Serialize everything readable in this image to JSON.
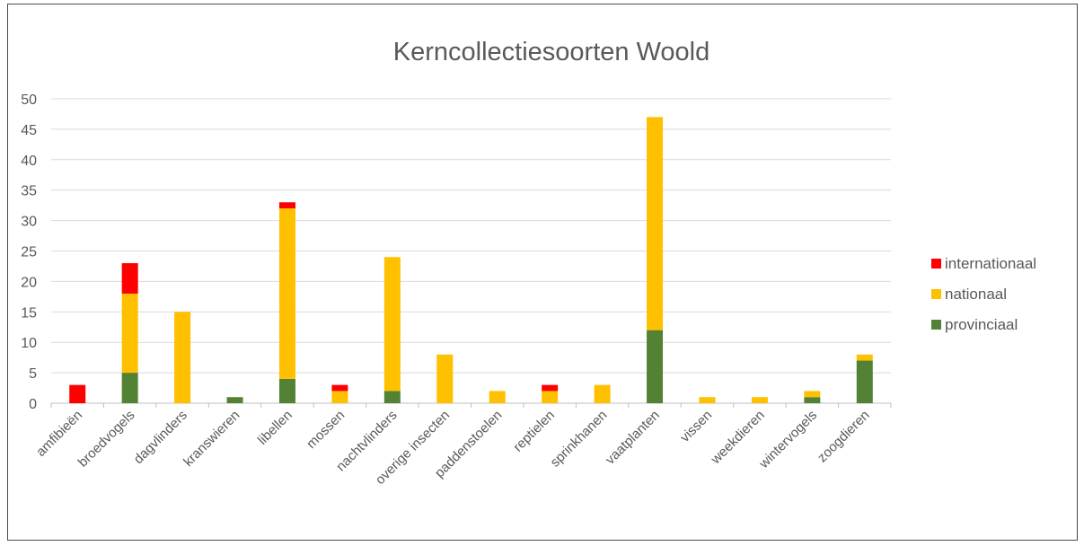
{
  "chart_data": {
    "type": "bar",
    "stacked": true,
    "title": "Kerncollectiesoorten Woold",
    "xlabel": "",
    "ylabel": "",
    "ylim": [
      0,
      50
    ],
    "yticks": [
      "0",
      "5",
      "10",
      "15",
      "20",
      "25",
      "30",
      "35",
      "40",
      "45",
      "50"
    ],
    "grid": true,
    "legend_position": "right",
    "categories": [
      "amfibieën",
      "broedvogels",
      "dagvlinders",
      "kranswieren",
      "libellen",
      "mossen",
      "nachtvlinders",
      "overige insecten",
      "paddenstoelen",
      "reptielen",
      "sprinkhanen",
      "vaatplanten",
      "vissen",
      "weekdieren",
      "wintervogels",
      "zoogdieren"
    ],
    "series": [
      {
        "name": "provinciaal",
        "color": "#548235",
        "values": [
          0,
          5,
          0,
          1,
          4,
          0,
          2,
          0,
          0,
          0,
          0,
          12,
          0,
          0,
          1,
          7
        ]
      },
      {
        "name": "nationaal",
        "color": "#FFC000",
        "values": [
          0,
          13,
          15,
          0,
          28,
          2,
          22,
          8,
          2,
          2,
          3,
          35,
          1,
          1,
          1,
          1
        ]
      },
      {
        "name": "internationaal",
        "color": "#FF0000",
        "values": [
          3,
          5,
          0,
          0,
          1,
          1,
          0,
          0,
          0,
          1,
          0,
          0,
          0,
          0,
          0,
          0
        ]
      }
    ],
    "legend_order": [
      "internationaal",
      "nationaal",
      "provinciaal"
    ]
  }
}
